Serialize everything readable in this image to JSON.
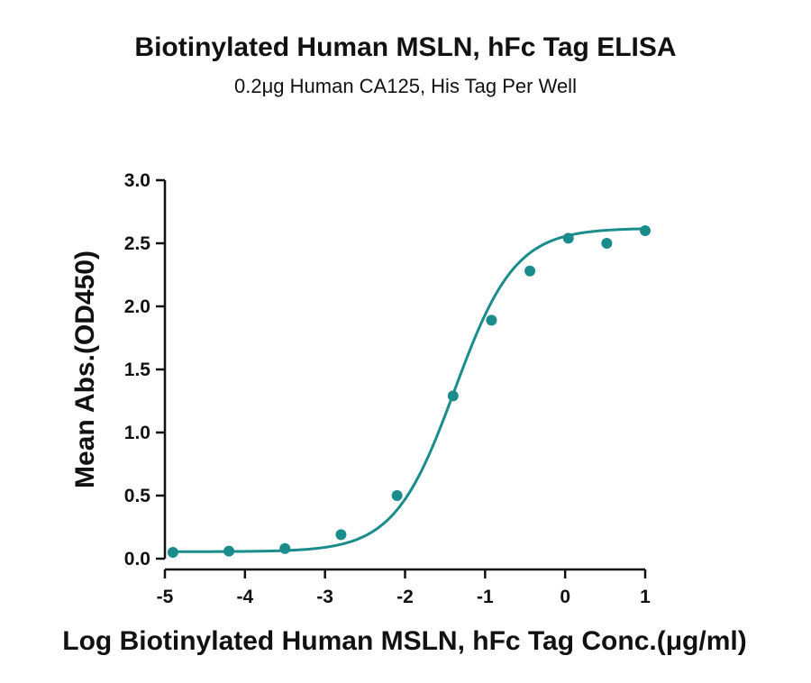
{
  "chart_data": {
    "type": "scatter",
    "title": "Biotinylated Human MSLN, hFc Tag ELISA",
    "subtitle": "0.2μg Human CA125, His Tag Per Well",
    "xlabel": "Log Biotinylated Human MSLN, hFc Tag Conc.(μg/ml)",
    "ylabel": "Mean Abs.(OD450)",
    "xlim": [
      -5,
      1
    ],
    "ylim": [
      0,
      3.0
    ],
    "x_ticks": [
      "-5",
      "-4",
      "-3",
      "-2",
      "-1",
      "0",
      "1"
    ],
    "y_ticks": [
      "0.0",
      "0.5",
      "1.0",
      "1.5",
      "2.0",
      "2.5",
      "3.0"
    ],
    "grid": false,
    "color": "#1a8c8c",
    "series": [
      {
        "points": [
          {
            "x": -4.9,
            "y": 0.05
          },
          {
            "x": -4.2,
            "y": 0.06
          },
          {
            "x": -3.5,
            "y": 0.08
          },
          {
            "x": -2.8,
            "y": 0.19
          },
          {
            "x": -2.1,
            "y": 0.5
          },
          {
            "x": -1.4,
            "y": 1.29
          },
          {
            "x": -0.92,
            "y": 1.89
          },
          {
            "x": -0.44,
            "y": 2.28
          },
          {
            "x": 0.04,
            "y": 2.54
          },
          {
            "x": 0.52,
            "y": 2.5
          },
          {
            "x": 1.0,
            "y": 2.6
          }
        ],
        "fit": {
          "model": "4PL",
          "bottom": 0.055,
          "top": 2.62,
          "logEC50": -1.38,
          "hill": 1.15
        }
      }
    ]
  }
}
